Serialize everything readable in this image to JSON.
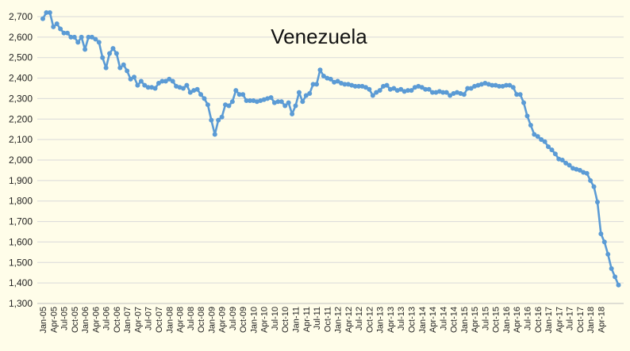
{
  "chart_data": {
    "type": "line",
    "title": "Venezuela",
    "xlabel": "",
    "ylabel": "",
    "ylim": [
      1300,
      2700
    ],
    "ytick_step": 100,
    "grid": "horizontal",
    "legend": "none",
    "series_color": "#5b9bd5",
    "x_tick_labels": [
      "Jan-05",
      "Apr-05",
      "Jul-05",
      "Oct-05",
      "Jan-06",
      "Apr-06",
      "Jul-06",
      "Oct-06",
      "Jan-07",
      "Apr-07",
      "Jul-07",
      "Oct-07",
      "Jan-08",
      "Apr-08",
      "Jul-08",
      "Oct-08",
      "Jan-09",
      "Apr-09",
      "Jul-09",
      "Oct-09",
      "Jan-10",
      "Apr-10",
      "Jul-10",
      "Oct-10",
      "Jan-11",
      "Apr-11",
      "Jul-11",
      "Oct-11",
      "Jan-12",
      "Apr-12",
      "Jul-12",
      "Oct-12",
      "Jan-13",
      "Apr-13",
      "Jul-13",
      "Oct-13",
      "Jan-14",
      "Apr-14",
      "Jul-14",
      "Oct-14",
      "Jan-15",
      "Apr-15",
      "Jul-15",
      "Oct-15",
      "Jan-16",
      "Apr-16",
      "Jul-16",
      "Oct-16",
      "Jan-17",
      "Apr-17",
      "Jul-17",
      "Oct-17",
      "Jan-18",
      "Apr-18"
    ],
    "x_start": "Jan-05",
    "series": [
      {
        "values": [
          2690,
          2720,
          2720,
          2650,
          2665,
          2640,
          2620,
          2620,
          2600,
          2600,
          2575,
          2600,
          2540,
          2600,
          2600,
          2590,
          2575,
          2500,
          2450,
          2520,
          2545,
          2520,
          2450,
          2465,
          2435,
          2395,
          2405,
          2365,
          2385,
          2365,
          2355,
          2355,
          2350,
          2375,
          2385,
          2385,
          2395,
          2385,
          2360,
          2355,
          2350,
          2365,
          2330,
          2340,
          2345,
          2320,
          2300,
          2270,
          2195,
          2125,
          2195,
          2210,
          2270,
          2265,
          2285,
          2340,
          2320,
          2320,
          2290,
          2290,
          2290,
          2285,
          2290,
          2295,
          2300,
          2305,
          2280,
          2285,
          2285,
          2265,
          2280,
          2225,
          2265,
          2330,
          2285,
          2315,
          2325,
          2370,
          2370,
          2440,
          2410,
          2400,
          2395,
          2380,
          2385,
          2375,
          2370,
          2370,
          2365,
          2360,
          2360,
          2360,
          2355,
          2345,
          2315,
          2330,
          2340,
          2360,
          2365,
          2345,
          2350,
          2340,
          2345,
          2335,
          2340,
          2340,
          2355,
          2360,
          2355,
          2345,
          2345,
          2330,
          2330,
          2335,
          2330,
          2330,
          2315,
          2325,
          2330,
          2325,
          2320,
          2350,
          2350,
          2360,
          2365,
          2370,
          2375,
          2370,
          2365,
          2365,
          2360,
          2360,
          2365,
          2365,
          2355,
          2320,
          2320,
          2280,
          2215,
          2170,
          2125,
          2115,
          2100,
          2090,
          2065,
          2050,
          2030,
          2005,
          2000,
          1985,
          1975,
          1960,
          1955,
          1950,
          1940,
          1935,
          1900,
          1870,
          1795,
          1640,
          1600,
          1540,
          1470,
          1430,
          1390
        ]
      }
    ]
  }
}
